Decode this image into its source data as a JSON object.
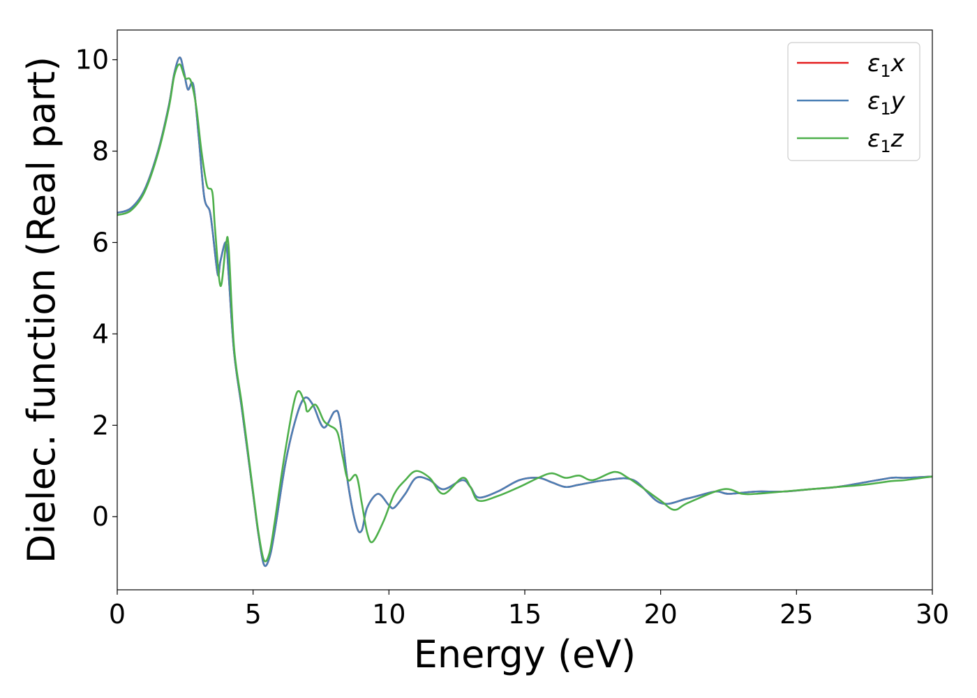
{
  "chart_data": {
    "type": "line",
    "xlabel": "Energy (eV)",
    "ylabel": "Dielec. function (Real part)",
    "xlim": [
      0,
      30
    ],
    "ylim": [
      -1.6,
      10.65
    ],
    "xticks": [
      0,
      5,
      10,
      15,
      20,
      25,
      30
    ],
    "yticks": [
      0,
      2,
      4,
      6,
      8,
      10
    ],
    "grid": false,
    "legend": {
      "position": "top-right"
    },
    "series": [
      {
        "name": "ε₁x",
        "label_base": "ε",
        "label_sub": "1",
        "label_suffix": "x",
        "color": "#e41a1c",
        "x": [
          0,
          0.5,
          1.0,
          1.5,
          1.9,
          2.1,
          2.3,
          2.45,
          2.6,
          2.8,
          3.0,
          3.2,
          3.4,
          3.5,
          3.7,
          3.8,
          4.0,
          4.1,
          4.3,
          4.6,
          5.0,
          5.2,
          5.4,
          5.6,
          5.8,
          6.2,
          6.6,
          6.9,
          7.2,
          7.6,
          8.0,
          8.2,
          8.5,
          8.8,
          9.0,
          9.2,
          9.6,
          10.0,
          10.2,
          10.6,
          11.0,
          11.5,
          12.0,
          12.7,
          13.0,
          13.3,
          14.0,
          14.8,
          15.5,
          16.0,
          16.5,
          17.0,
          18.0,
          19.0,
          20.0,
          21.0,
          22.0,
          22.5,
          23.5,
          24.5,
          25.5,
          26.5,
          27.5,
          28.5,
          29.0,
          30.0
        ],
        "values": [
          6.65,
          6.75,
          7.15,
          8.0,
          9.0,
          9.7,
          10.05,
          9.75,
          9.35,
          9.45,
          8.3,
          7.0,
          6.7,
          6.3,
          5.3,
          5.6,
          6.0,
          5.3,
          3.6,
          2.3,
          0.5,
          -0.4,
          -1.05,
          -0.9,
          -0.3,
          1.2,
          2.2,
          2.6,
          2.45,
          1.95,
          2.3,
          2.1,
          0.7,
          -0.2,
          -0.3,
          0.2,
          0.5,
          0.25,
          0.2,
          0.5,
          0.85,
          0.8,
          0.6,
          0.8,
          0.65,
          0.42,
          0.55,
          0.8,
          0.85,
          0.75,
          0.65,
          0.7,
          0.8,
          0.8,
          0.3,
          0.4,
          0.55,
          0.5,
          0.55,
          0.55,
          0.6,
          0.65,
          0.75,
          0.85,
          0.85,
          0.88
        ]
      },
      {
        "name": "ε₁y",
        "label_base": "ε",
        "label_sub": "1",
        "label_suffix": "y",
        "color": "#4a7fb5",
        "x": [
          0,
          0.5,
          1.0,
          1.5,
          1.9,
          2.1,
          2.3,
          2.45,
          2.6,
          2.8,
          3.0,
          3.2,
          3.4,
          3.5,
          3.7,
          3.8,
          4.0,
          4.1,
          4.3,
          4.6,
          5.0,
          5.2,
          5.4,
          5.6,
          5.8,
          6.2,
          6.6,
          6.9,
          7.2,
          7.6,
          8.0,
          8.2,
          8.5,
          8.8,
          9.0,
          9.2,
          9.6,
          10.0,
          10.2,
          10.6,
          11.0,
          11.5,
          12.0,
          12.7,
          13.0,
          13.3,
          14.0,
          14.8,
          15.5,
          16.0,
          16.5,
          17.0,
          18.0,
          19.0,
          20.0,
          21.0,
          22.0,
          22.5,
          23.5,
          24.5,
          25.5,
          26.5,
          27.5,
          28.5,
          29.0,
          30.0
        ],
        "values": [
          6.65,
          6.75,
          7.15,
          8.0,
          9.0,
          9.7,
          10.05,
          9.75,
          9.35,
          9.45,
          8.3,
          7.0,
          6.7,
          6.3,
          5.3,
          5.6,
          6.0,
          5.3,
          3.6,
          2.3,
          0.5,
          -0.4,
          -1.05,
          -0.9,
          -0.3,
          1.2,
          2.2,
          2.6,
          2.45,
          1.95,
          2.3,
          2.1,
          0.7,
          -0.2,
          -0.3,
          0.2,
          0.5,
          0.25,
          0.2,
          0.5,
          0.85,
          0.8,
          0.6,
          0.8,
          0.65,
          0.42,
          0.55,
          0.8,
          0.85,
          0.75,
          0.65,
          0.7,
          0.8,
          0.8,
          0.3,
          0.4,
          0.55,
          0.5,
          0.55,
          0.55,
          0.6,
          0.65,
          0.75,
          0.85,
          0.85,
          0.88
        ]
      },
      {
        "name": "ε₁z",
        "label_base": "ε",
        "label_sub": "1",
        "label_suffix": "z",
        "color": "#4daf4a",
        "x": [
          0,
          0.5,
          1.0,
          1.5,
          1.9,
          2.1,
          2.3,
          2.5,
          2.7,
          2.9,
          3.1,
          3.3,
          3.5,
          3.6,
          3.8,
          4.0,
          4.1,
          4.3,
          4.6,
          5.0,
          5.2,
          5.4,
          5.6,
          5.8,
          6.2,
          6.6,
          6.9,
          7.0,
          7.3,
          7.6,
          7.8,
          8.1,
          8.3,
          8.5,
          8.8,
          9.0,
          9.2,
          9.4,
          9.8,
          10.2,
          10.6,
          11.0,
          11.5,
          12.0,
          12.7,
          13.0,
          13.3,
          14.0,
          14.8,
          15.5,
          16.0,
          16.5,
          17.0,
          17.5,
          18.3,
          18.8,
          19.3,
          20.0,
          20.5,
          21.0,
          22.3,
          23.0,
          23.5,
          24.5,
          25.5,
          26.5,
          27.5,
          28.5,
          29.0,
          30.0
        ],
        "values": [
          6.6,
          6.7,
          7.1,
          7.95,
          8.95,
          9.65,
          9.9,
          9.6,
          9.55,
          9.0,
          8.0,
          7.25,
          7.1,
          6.3,
          5.05,
          5.95,
          5.9,
          3.7,
          2.4,
          0.55,
          -0.35,
          -0.95,
          -0.8,
          -0.1,
          1.5,
          2.7,
          2.5,
          2.3,
          2.45,
          2.1,
          2.0,
          1.85,
          1.3,
          0.8,
          0.9,
          0.3,
          -0.35,
          -0.55,
          -0.1,
          0.5,
          0.8,
          1.0,
          0.85,
          0.5,
          0.85,
          0.65,
          0.35,
          0.45,
          0.65,
          0.85,
          0.95,
          0.85,
          0.9,
          0.8,
          0.98,
          0.85,
          0.65,
          0.35,
          0.15,
          0.3,
          0.6,
          0.5,
          0.5,
          0.55,
          0.6,
          0.65,
          0.7,
          0.78,
          0.8,
          0.88
        ]
      }
    ]
  }
}
